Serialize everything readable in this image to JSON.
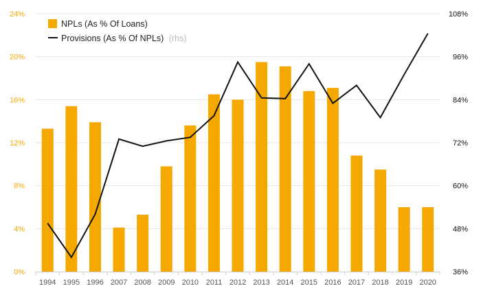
{
  "chart_data": {
    "type": "bar",
    "categories": [
      "1994",
      "1995",
      "1996",
      "2007",
      "2008",
      "2009",
      "2010",
      "2011",
      "2012",
      "2013",
      "2014",
      "2015",
      "2016",
      "2017",
      "2018",
      "2019",
      "2020"
    ],
    "series": [
      {
        "name": "NPLs (As % Of Loans)",
        "type": "bar",
        "axis": "left",
        "color": "#f5a800",
        "values": [
          13.3,
          15.4,
          13.9,
          4.1,
          5.3,
          9.8,
          13.6,
          16.5,
          16.0,
          19.5,
          19.1,
          16.8,
          17.1,
          10.8,
          9.5,
          6.0,
          6.0
        ]
      },
      {
        "name": "Provisions (As % Of NPLs)",
        "type": "line",
        "axis": "right",
        "color": "#111111",
        "values": [
          49.5,
          40.0,
          52.0,
          73.0,
          71.0,
          72.5,
          73.5,
          79.5,
          94.5,
          84.5,
          84.3,
          94.0,
          83.0,
          88.0,
          79.0,
          91.0,
          102.5
        ]
      }
    ],
    "legend_note": "(rhs)",
    "y_left": {
      "ticks": [
        "0%",
        "4%",
        "8%",
        "12%",
        "16%",
        "20%",
        "24%"
      ],
      "range": [
        0,
        24
      ]
    },
    "y_right": {
      "ticks": [
        "36%",
        "48%",
        "60%",
        "72%",
        "84%",
        "96%",
        "108%"
      ],
      "range": [
        36,
        108
      ]
    },
    "grid": "horizontal",
    "legend_position": "top-left"
  }
}
